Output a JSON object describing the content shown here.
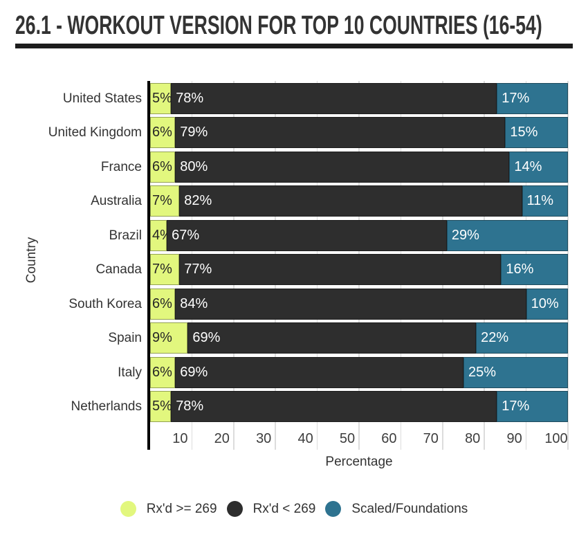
{
  "chart_data": {
    "type": "bar",
    "orientation": "horizontal",
    "stacked": true,
    "title": "26.1 - WORKOUT VERSION FOR TOP 10 COUNTRIES (16-54)",
    "categories": [
      "United States",
      "United Kingdom",
      "France",
      "Australia",
      "Brazil",
      "Canada",
      "South Korea",
      "Spain",
      "Italy",
      "Netherlands"
    ],
    "series": [
      {
        "name": "Rx'd >= 269",
        "color": "#e2f77e",
        "label_color": "#262626",
        "values": [
          5,
          6,
          6,
          7,
          4,
          7,
          6,
          9,
          6,
          5
        ]
      },
      {
        "name": "Rx'd < 269",
        "color": "#2e2e2e",
        "label_color": "#ffffff",
        "values": [
          78,
          79,
          80,
          82,
          67,
          77,
          84,
          69,
          69,
          78
        ]
      },
      {
        "name": "Scaled/Foundations",
        "color": "#2e7390",
        "label_color": "#ffffff",
        "values": [
          17,
          15,
          14,
          11,
          29,
          16,
          10,
          22,
          25,
          17
        ]
      }
    ],
    "value_suffix": "%",
    "xlabel": "Percentage",
    "ylabel": "Country",
    "xlim": [
      0,
      100
    ],
    "xticks": [
      10,
      20,
      30,
      40,
      50,
      60,
      70,
      80,
      90,
      100
    ],
    "grid": true,
    "legend_position": "bottom",
    "colors": {
      "gridline": "#dcdcdc",
      "axis_line": "#000000",
      "text": "#333333",
      "title_rule": "#1c1c1c"
    }
  }
}
